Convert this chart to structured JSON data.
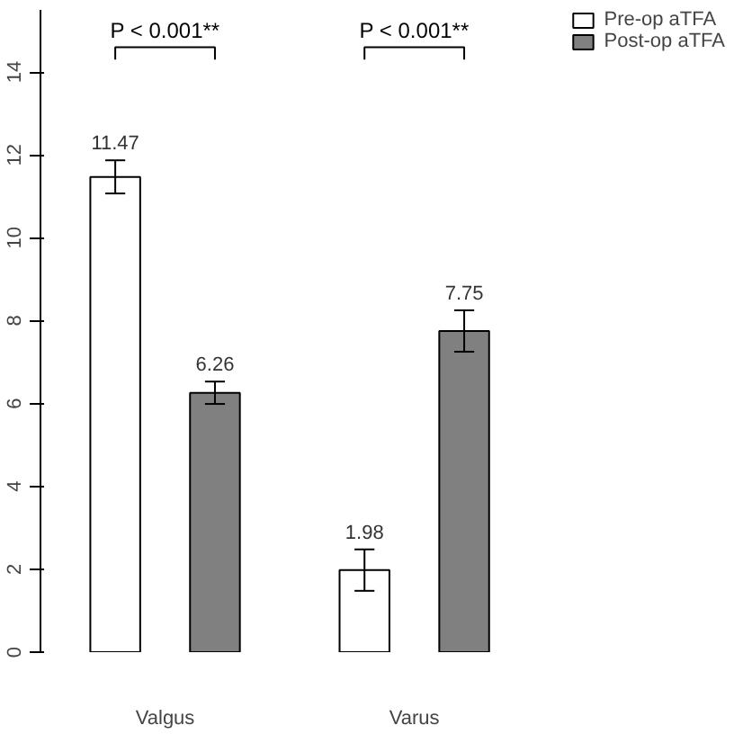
{
  "chart_data": {
    "type": "bar",
    "categories": [
      "Valgus",
      "Varus"
    ],
    "series": [
      {
        "name": "Pre-op aTFA",
        "color": "#ffffff",
        "values": [
          11.47,
          1.98
        ],
        "errors": [
          0.4,
          0.5
        ]
      },
      {
        "name": "Post-op aTFA",
        "color": "#808080",
        "values": [
          6.26,
          7.75
        ],
        "errors": [
          0.27,
          0.5
        ]
      }
    ],
    "ylim": [
      0,
      15.5
    ],
    "yticks": [
      0,
      2,
      4,
      6,
      8,
      10,
      12,
      14
    ],
    "data_labels": true,
    "legend": "top right",
    "grid": false,
    "annotations": [
      "P < 0.001**",
      "P < 0.001**"
    ]
  }
}
